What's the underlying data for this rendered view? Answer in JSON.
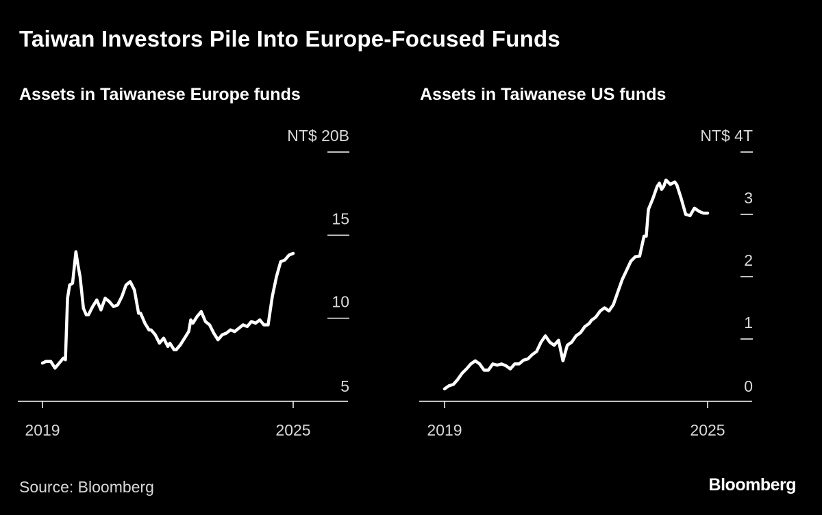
{
  "title": "Taiwan Investors Pile Into Europe-Focused Funds",
  "source": "Source: Bloomberg",
  "logo": "Bloomberg",
  "colors": {
    "background": "#000000",
    "line": "#ffffff",
    "axis": "#ffffff",
    "label": "#d9d9d9"
  },
  "chart_data": [
    {
      "type": "line",
      "title": "Assets in Taiwanese Europe funds",
      "unit_label": "NT$ 20B",
      "ylim": [
        5,
        20
      ],
      "yticks": [
        5,
        10,
        15,
        20
      ],
      "ytick_labels": [
        "5",
        "10",
        "15",
        "NT$ 20B"
      ],
      "xlim": [
        2018.7,
        2026.3
      ],
      "xticks": [
        2019,
        2025
      ],
      "xtick_labels": [
        "2019",
        "2025"
      ],
      "grid": false,
      "series": [
        {
          "x": [
            2019.0,
            2019.08,
            2019.2,
            2019.3,
            2019.4,
            2019.5,
            2019.55,
            2019.6,
            2019.65,
            2019.72,
            2019.8,
            2019.85,
            2019.9,
            2019.98,
            2020.05,
            2020.1,
            2020.2,
            2020.3,
            2020.4,
            2020.5,
            2020.6,
            2020.7,
            2020.8,
            2020.9,
            2021.0,
            2021.1,
            2021.2,
            2021.3,
            2021.35,
            2021.45,
            2021.55,
            2021.6,
            2021.7,
            2021.8,
            2021.9,
            2022.0,
            2022.05,
            2022.15,
            2022.2,
            2022.3,
            2022.4,
            2022.5,
            2022.55,
            2022.6,
            2022.7,
            2022.8,
            2022.9,
            2023.0,
            2023.1,
            2023.2,
            2023.3,
            2023.4,
            2023.5,
            2023.6,
            2023.7,
            2023.8,
            2023.9,
            2024.0,
            2024.1,
            2024.2,
            2024.3,
            2024.4,
            2024.5,
            2024.6,
            2024.7,
            2024.8,
            2024.9,
            2025.0
          ],
          "values": [
            7.3,
            7.4,
            7.4,
            7.0,
            7.3,
            7.6,
            7.5,
            11.2,
            12.0,
            12.1,
            14.0,
            13.2,
            12.5,
            10.6,
            10.2,
            10.2,
            10.7,
            11.1,
            10.5,
            11.2,
            11.0,
            10.7,
            10.8,
            11.3,
            12.0,
            12.2,
            11.7,
            10.3,
            10.3,
            9.7,
            9.3,
            9.3,
            9.0,
            8.5,
            8.8,
            8.3,
            8.5,
            8.1,
            8.1,
            8.4,
            8.8,
            9.2,
            9.9,
            9.7,
            10.1,
            10.4,
            9.8,
            9.6,
            9.1,
            8.7,
            9.0,
            9.1,
            9.3,
            9.2,
            9.4,
            9.6,
            9.5,
            9.8,
            9.7,
            9.9,
            9.6,
            9.6,
            11.3,
            12.5,
            13.4,
            13.5,
            13.8,
            13.9
          ]
        }
      ]
    },
    {
      "type": "line",
      "title": "Assets in Taiwanese US funds",
      "unit_label": "NT$ 4T",
      "ylim": [
        0,
        4
      ],
      "yticks": [
        0,
        1,
        2,
        3,
        4
      ],
      "ytick_labels": [
        "0",
        "1",
        "2",
        "3",
        "NT$ 4T"
      ],
      "xlim": [
        2018.7,
        2026.0
      ],
      "xticks": [
        2019,
        2025
      ],
      "xtick_labels": [
        "2019",
        "2025"
      ],
      "grid": false,
      "series": [
        {
          "x": [
            2019.0,
            2019.1,
            2019.2,
            2019.3,
            2019.4,
            2019.5,
            2019.6,
            2019.7,
            2019.8,
            2019.9,
            2020.0,
            2020.1,
            2020.2,
            2020.3,
            2020.4,
            2020.5,
            2020.6,
            2020.7,
            2020.8,
            2020.9,
            2021.0,
            2021.1,
            2021.2,
            2021.3,
            2021.4,
            2021.5,
            2021.6,
            2021.7,
            2021.8,
            2021.9,
            2022.0,
            2022.1,
            2022.2,
            2022.3,
            2022.35,
            2022.45,
            2022.55,
            2022.65,
            2022.75,
            2022.85,
            2022.95,
            2023.05,
            2023.15,
            2023.25,
            2023.35,
            2023.45,
            2023.55,
            2023.6,
            2023.65,
            2023.75,
            2023.85,
            2023.9,
            2023.95,
            2024.0,
            2024.05,
            2024.15,
            2024.25,
            2024.3,
            2024.4,
            2024.5,
            2024.6,
            2024.7,
            2024.8,
            2024.9,
            2025.0
          ],
          "values": [
            0.2,
            0.25,
            0.27,
            0.35,
            0.45,
            0.52,
            0.6,
            0.65,
            0.6,
            0.5,
            0.5,
            0.6,
            0.58,
            0.6,
            0.57,
            0.52,
            0.6,
            0.6,
            0.66,
            0.68,
            0.75,
            0.8,
            0.95,
            1.05,
            0.95,
            0.9,
            0.98,
            0.65,
            0.9,
            0.95,
            1.05,
            1.1,
            1.2,
            1.25,
            1.3,
            1.35,
            1.45,
            1.5,
            1.45,
            1.55,
            1.75,
            1.95,
            2.1,
            2.25,
            2.32,
            2.33,
            2.65,
            2.65,
            3.08,
            3.25,
            3.45,
            3.5,
            3.4,
            3.45,
            3.55,
            3.48,
            3.52,
            3.47,
            3.25,
            3.0,
            2.98,
            3.1,
            3.05,
            3.02,
            3.02
          ]
        }
      ]
    }
  ]
}
